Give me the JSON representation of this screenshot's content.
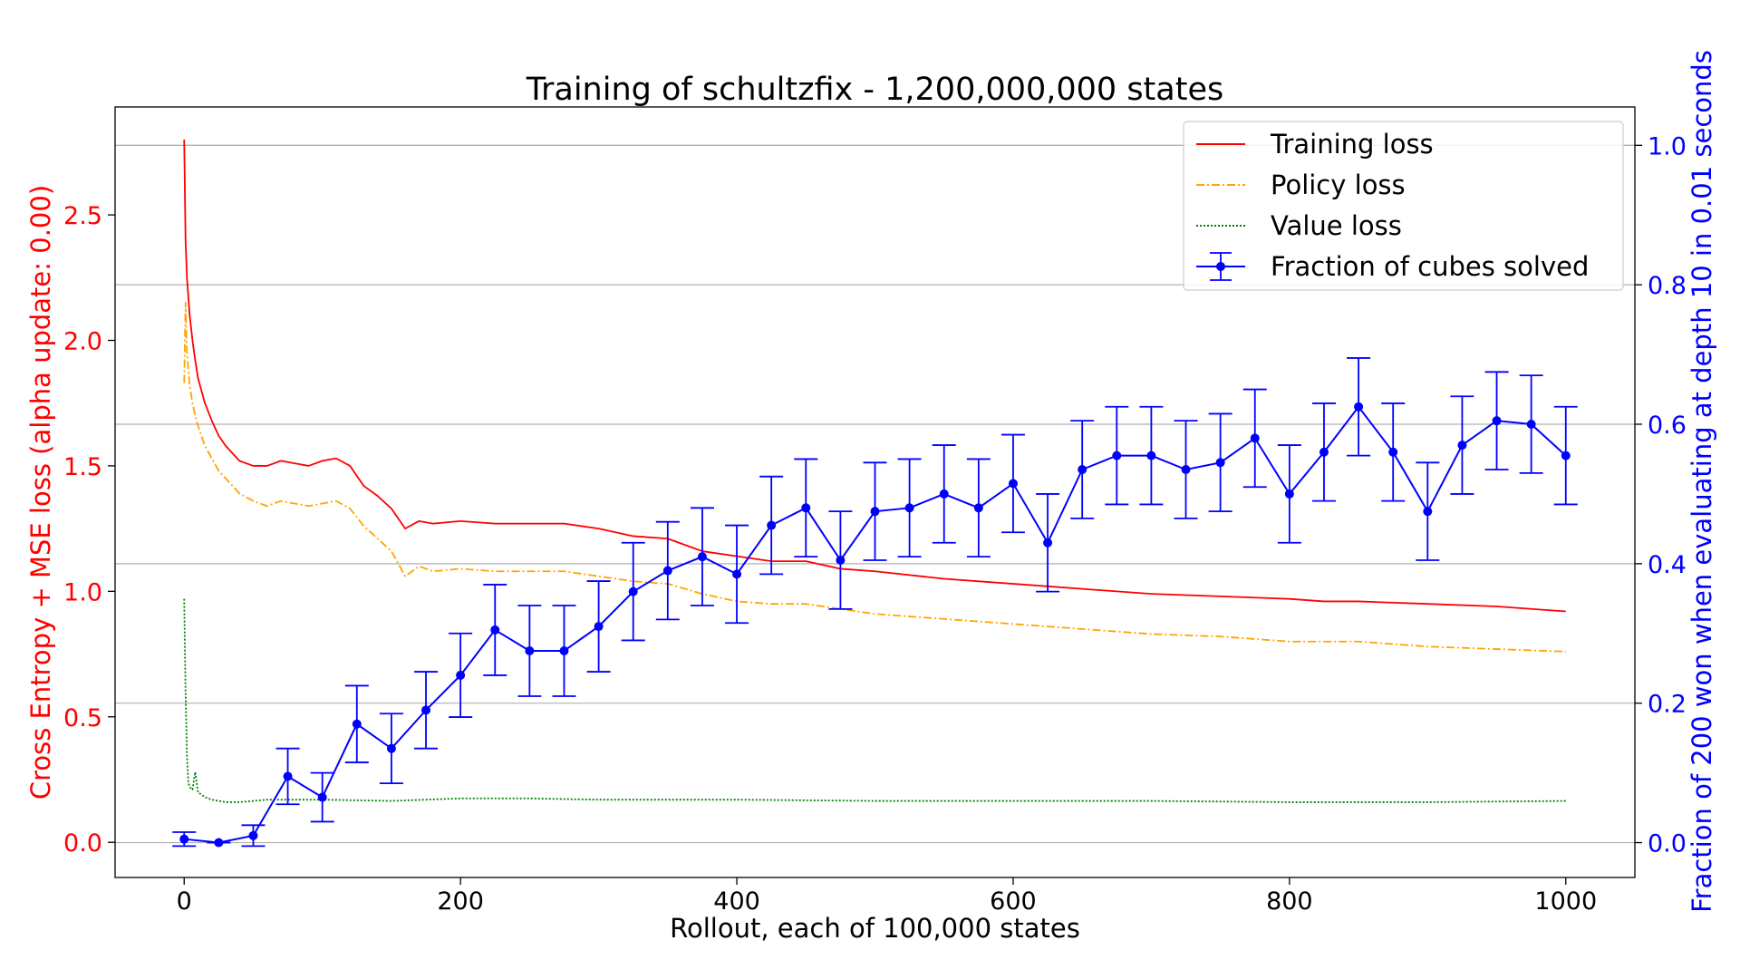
{
  "chart_data": {
    "type": "line",
    "title": "Training of schultzfix - 1,200,000,000 states",
    "xlabel": "Rollout, each of 100,000 states",
    "ylabel_left": "Cross Entropy + MSE loss (alpha update: 0.00)",
    "ylabel_right": "Fraction of 200 won when evaluating at depth 10 in 0.01 seconds",
    "xlim": [
      -50,
      1050
    ],
    "ylim_left": [
      -0.14,
      2.93
    ],
    "ylim_right": [
      -0.05,
      1.055
    ],
    "x_ticks": [
      0,
      200,
      400,
      600,
      800,
      1000
    ],
    "x_tick_labels": [
      "0",
      "200",
      "400",
      "600",
      "800",
      "1000"
    ],
    "y_left_ticks": [
      0.0,
      0.5,
      1.0,
      1.5,
      2.0,
      2.5
    ],
    "y_left_tick_labels": [
      "0.0",
      "0.5",
      "1.0",
      "1.5",
      "2.0",
      "2.5"
    ],
    "y_right_ticks": [
      0.0,
      0.2,
      0.4,
      0.6,
      0.8,
      1.0
    ],
    "y_right_tick_labels": [
      "0.0",
      "0.2",
      "0.4",
      "0.6",
      "0.8",
      "1.0"
    ],
    "grid": "horizontal lines at right-axis ticks",
    "legend_position": "top-right",
    "left_axis_color": "#ff0000",
    "right_axis_color": "#0000ff",
    "series": [
      {
        "name": "Training loss",
        "axis": "left",
        "color": "#ff0000",
        "style": "solid",
        "x": [
          0,
          1,
          2,
          4,
          6,
          8,
          10,
          15,
          20,
          25,
          30,
          35,
          40,
          50,
          60,
          70,
          80,
          90,
          100,
          110,
          120,
          130,
          140,
          150,
          160,
          170,
          180,
          200,
          225,
          250,
          275,
          300,
          325,
          350,
          375,
          400,
          425,
          450,
          475,
          500,
          550,
          600,
          625,
          650,
          700,
          750,
          800,
          825,
          850,
          900,
          950,
          1000
        ],
        "y": [
          2.8,
          2.4,
          2.25,
          2.1,
          2.0,
          1.92,
          1.85,
          1.75,
          1.68,
          1.62,
          1.58,
          1.55,
          1.52,
          1.5,
          1.5,
          1.52,
          1.51,
          1.5,
          1.52,
          1.53,
          1.5,
          1.42,
          1.38,
          1.33,
          1.25,
          1.28,
          1.27,
          1.28,
          1.27,
          1.27,
          1.27,
          1.25,
          1.22,
          1.21,
          1.16,
          1.14,
          1.12,
          1.12,
          1.09,
          1.08,
          1.05,
          1.03,
          1.02,
          1.01,
          0.99,
          0.98,
          0.97,
          0.96,
          0.96,
          0.95,
          0.94,
          0.92
        ]
      },
      {
        "name": "Policy loss",
        "axis": "left",
        "color": "#ffa500",
        "style": "dashdot",
        "x": [
          0,
          1,
          2,
          4,
          6,
          8,
          10,
          15,
          20,
          25,
          30,
          35,
          40,
          50,
          60,
          70,
          80,
          90,
          100,
          110,
          120,
          130,
          140,
          150,
          160,
          170,
          180,
          200,
          225,
          250,
          275,
          300,
          325,
          350,
          375,
          400,
          425,
          450,
          475,
          500,
          550,
          600,
          625,
          650,
          700,
          750,
          800,
          825,
          850,
          900,
          950,
          1000
        ],
        "y": [
          1.83,
          2.15,
          1.95,
          1.82,
          1.75,
          1.7,
          1.66,
          1.58,
          1.53,
          1.48,
          1.45,
          1.42,
          1.39,
          1.36,
          1.34,
          1.36,
          1.35,
          1.34,
          1.35,
          1.36,
          1.33,
          1.26,
          1.21,
          1.16,
          1.06,
          1.1,
          1.08,
          1.09,
          1.08,
          1.08,
          1.08,
          1.06,
          1.04,
          1.03,
          0.99,
          0.96,
          0.95,
          0.95,
          0.93,
          0.91,
          0.89,
          0.87,
          0.86,
          0.85,
          0.83,
          0.82,
          0.8,
          0.8,
          0.8,
          0.78,
          0.77,
          0.76
        ]
      },
      {
        "name": "Value loss",
        "axis": "left",
        "color": "#008000",
        "style": "dotted",
        "x": [
          0,
          1,
          2,
          3,
          4,
          6,
          8,
          10,
          15,
          20,
          30,
          40,
          60,
          80,
          100,
          150,
          200,
          250,
          300,
          400,
          500,
          600,
          700,
          800,
          900,
          1000
        ],
        "y": [
          0.97,
          0.6,
          0.35,
          0.24,
          0.22,
          0.21,
          0.28,
          0.2,
          0.18,
          0.17,
          0.16,
          0.16,
          0.17,
          0.17,
          0.17,
          0.165,
          0.175,
          0.175,
          0.17,
          0.17,
          0.165,
          0.165,
          0.165,
          0.16,
          0.16,
          0.165
        ]
      },
      {
        "name": "Fraction of cubes solved",
        "axis": "right",
        "color": "#0000ff",
        "style": "solid-marker-errorbar",
        "x": [
          0,
          25,
          50,
          75,
          100,
          125,
          150,
          175,
          200,
          225,
          250,
          275,
          300,
          325,
          350,
          375,
          400,
          425,
          450,
          475,
          500,
          525,
          550,
          575,
          600,
          625,
          650,
          675,
          700,
          725,
          750,
          775,
          800,
          825,
          850,
          875,
          900,
          925,
          950,
          975,
          1000
        ],
        "y": [
          0.005,
          0.0,
          0.01,
          0.095,
          0.065,
          0.17,
          0.135,
          0.19,
          0.24,
          0.305,
          0.275,
          0.275,
          0.31,
          0.36,
          0.39,
          0.41,
          0.385,
          0.455,
          0.48,
          0.405,
          0.475,
          0.48,
          0.5,
          0.48,
          0.515,
          0.43,
          0.535,
          0.555,
          0.555,
          0.535,
          0.545,
          0.58,
          0.5,
          0.56,
          0.625,
          0.56,
          0.475,
          0.57,
          0.605,
          0.6,
          0.555
        ],
        "error": [
          0.01,
          0.0,
          0.015,
          0.04,
          0.035,
          0.055,
          0.05,
          0.055,
          0.06,
          0.065,
          0.065,
          0.065,
          0.065,
          0.07,
          0.07,
          0.07,
          0.07,
          0.07,
          0.07,
          0.07,
          0.07,
          0.07,
          0.07,
          0.07,
          0.07,
          0.07,
          0.07,
          0.07,
          0.07,
          0.07,
          0.07,
          0.07,
          0.07,
          0.07,
          0.07,
          0.07,
          0.07,
          0.07,
          0.07,
          0.07,
          0.07
        ]
      }
    ]
  }
}
